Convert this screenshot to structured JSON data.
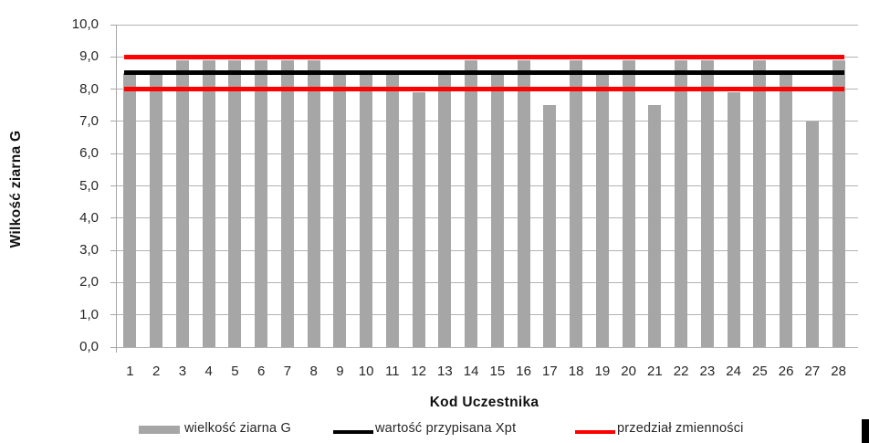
{
  "chart_data": {
    "type": "bar",
    "title": "",
    "xlabel": "Kod Uczestnika",
    "ylabel": "Wilkość ziarna G",
    "categories": [
      "1",
      "2",
      "3",
      "4",
      "5",
      "6",
      "7",
      "8",
      "9",
      "10",
      "11",
      "12",
      "13",
      "14",
      "15",
      "16",
      "17",
      "18",
      "19",
      "20",
      "21",
      "22",
      "23",
      "24",
      "25",
      "26",
      "27",
      "28"
    ],
    "values": [
      8.5,
      8.5,
      8.9,
      8.9,
      8.9,
      8.9,
      8.9,
      8.9,
      8.5,
      8.5,
      8.5,
      7.9,
      8.5,
      8.9,
      8.5,
      8.9,
      7.5,
      8.9,
      8.5,
      8.9,
      7.5,
      8.9,
      8.9,
      7.9,
      8.9,
      8.5,
      7.0,
      8.9
    ],
    "series_name": "wielkość ziarna G",
    "ylim": [
      0,
      10
    ],
    "ytick_step": 1.0,
    "ytick_labels": [
      "0,0",
      "1,0",
      "2,0",
      "3,0",
      "4,0",
      "5,0",
      "6,0",
      "7,0",
      "8,0",
      "9,0",
      "10,0"
    ],
    "grid": true,
    "legend_position": "bottom",
    "reference_lines": [
      {
        "label": "wartość przypisana Xpt",
        "value": 8.5,
        "color": "#000000",
        "thickness": 5
      },
      {
        "label": "przedział zmienności",
        "value": 9.0,
        "color": "#ff0000",
        "thickness": 5
      },
      {
        "label": "przedział zmienności",
        "value": 8.0,
        "color": "#ff0000",
        "thickness": 5
      }
    ],
    "legend": [
      {
        "label": "wielkość ziarna G",
        "swatch": "bar",
        "color": "#a6a6a6"
      },
      {
        "label": "wartość przypisana Xpt",
        "swatch": "line",
        "color": "#000000"
      },
      {
        "label": "przedział zmienności",
        "swatch": "line",
        "color": "#ff0000"
      }
    ]
  },
  "colors": {
    "bar": "#a6a6a6",
    "gridline": "#b3b3b3",
    "axis": "#a6a6a6",
    "assigned_value_line": "#000000",
    "variability_line": "#ff0000",
    "text": "#262626"
  }
}
